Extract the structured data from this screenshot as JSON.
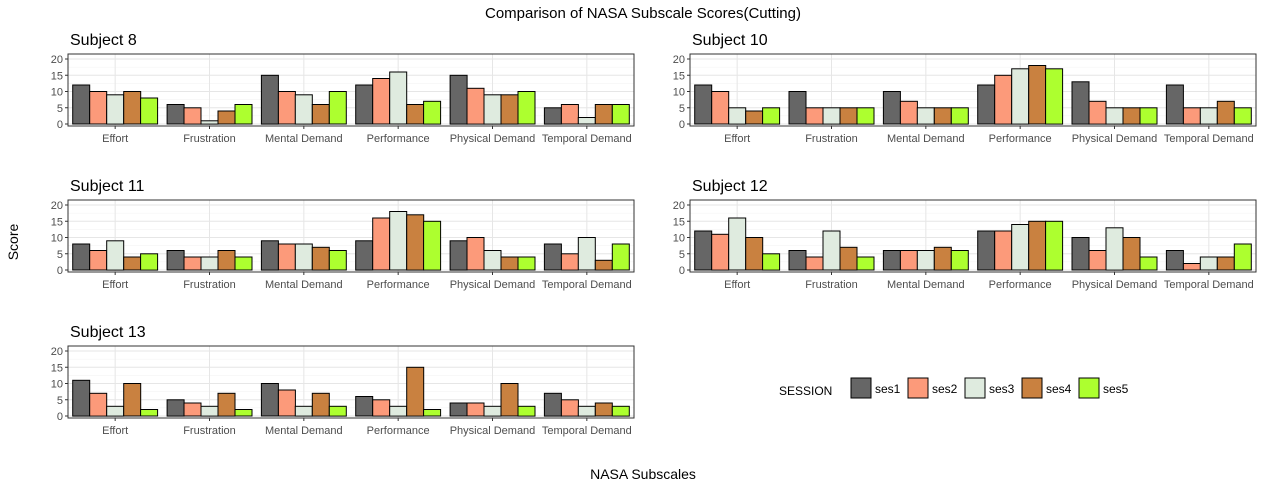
{
  "chart_data": {
    "type": "bar",
    "title": "Comparison of NASA Subscale Scores(Cutting)",
    "xlabel": "NASA Subscales",
    "ylabel": "Score",
    "ylim": [
      0,
      20
    ],
    "y_ticks": [
      0,
      5,
      10,
      15,
      20
    ],
    "grid": true,
    "categories": [
      "Effort",
      "Frustration",
      "Mental Demand",
      "Performance",
      "Physical Demand",
      "Temporal Demand"
    ],
    "legend": {
      "title": "SESSION",
      "placement": "bottom-right",
      "entries": [
        "ses1",
        "ses2",
        "ses3",
        "ses4",
        "ses5"
      ]
    },
    "colors": {
      "ses1": "#666666",
      "ses2": "#fc9a7a",
      "ses3": "#dfebdf",
      "ses4": "#c98140",
      "ses5": "#adff2f"
    },
    "panels": [
      {
        "title": "Subject 8",
        "series": [
          {
            "name": "ses1",
            "values": [
              12,
              6,
              15,
              12,
              15,
              5
            ]
          },
          {
            "name": "ses2",
            "values": [
              10,
              5,
              10,
              14,
              11,
              6
            ]
          },
          {
            "name": "ses3",
            "values": [
              9,
              1,
              9,
              16,
              9,
              2
            ]
          },
          {
            "name": "ses4",
            "values": [
              10,
              4,
              6,
              6,
              9,
              6
            ]
          },
          {
            "name": "ses5",
            "values": [
              8,
              6,
              10,
              7,
              10,
              6
            ]
          }
        ]
      },
      {
        "title": "Subject 10",
        "series": [
          {
            "name": "ses1",
            "values": [
              12,
              10,
              10,
              12,
              13,
              12
            ]
          },
          {
            "name": "ses2",
            "values": [
              10,
              5,
              7,
              15,
              7,
              5
            ]
          },
          {
            "name": "ses3",
            "values": [
              5,
              5,
              5,
              17,
              5,
              5
            ]
          },
          {
            "name": "ses4",
            "values": [
              4,
              5,
              5,
              18,
              5,
              7
            ]
          },
          {
            "name": "ses5",
            "values": [
              5,
              5,
              5,
              17,
              5,
              5
            ]
          }
        ]
      },
      {
        "title": "Subject 11",
        "series": [
          {
            "name": "ses1",
            "values": [
              8,
              6,
              9,
              9,
              9,
              8
            ]
          },
          {
            "name": "ses2",
            "values": [
              6,
              4,
              8,
              16,
              10,
              5
            ]
          },
          {
            "name": "ses3",
            "values": [
              9,
              4,
              8,
              18,
              6,
              10
            ]
          },
          {
            "name": "ses4",
            "values": [
              4,
              6,
              7,
              17,
              4,
              3
            ]
          },
          {
            "name": "ses5",
            "values": [
              5,
              4,
              6,
              15,
              4,
              8
            ]
          }
        ]
      },
      {
        "title": "Subject 12",
        "series": [
          {
            "name": "ses1",
            "values": [
              12,
              6,
              6,
              12,
              10,
              6
            ]
          },
          {
            "name": "ses2",
            "values": [
              11,
              4,
              6,
              12,
              6,
              2
            ]
          },
          {
            "name": "ses3",
            "values": [
              16,
              12,
              6,
              14,
              13,
              4
            ]
          },
          {
            "name": "ses4",
            "values": [
              10,
              7,
              7,
              15,
              10,
              4
            ]
          },
          {
            "name": "ses5",
            "values": [
              5,
              4,
              6,
              15,
              4,
              8
            ]
          }
        ]
      },
      {
        "title": "Subject 13",
        "series": [
          {
            "name": "ses1",
            "values": [
              11,
              5,
              10,
              6,
              4,
              7
            ]
          },
          {
            "name": "ses2",
            "values": [
              7,
              4,
              8,
              5,
              4,
              5
            ]
          },
          {
            "name": "ses3",
            "values": [
              3,
              3,
              3,
              3,
              3,
              3
            ]
          },
          {
            "name": "ses4",
            "values": [
              10,
              7,
              7,
              15,
              10,
              4
            ]
          },
          {
            "name": "ses5",
            "values": [
              2,
              2,
              3,
              2,
              3,
              3
            ]
          }
        ]
      }
    ]
  }
}
